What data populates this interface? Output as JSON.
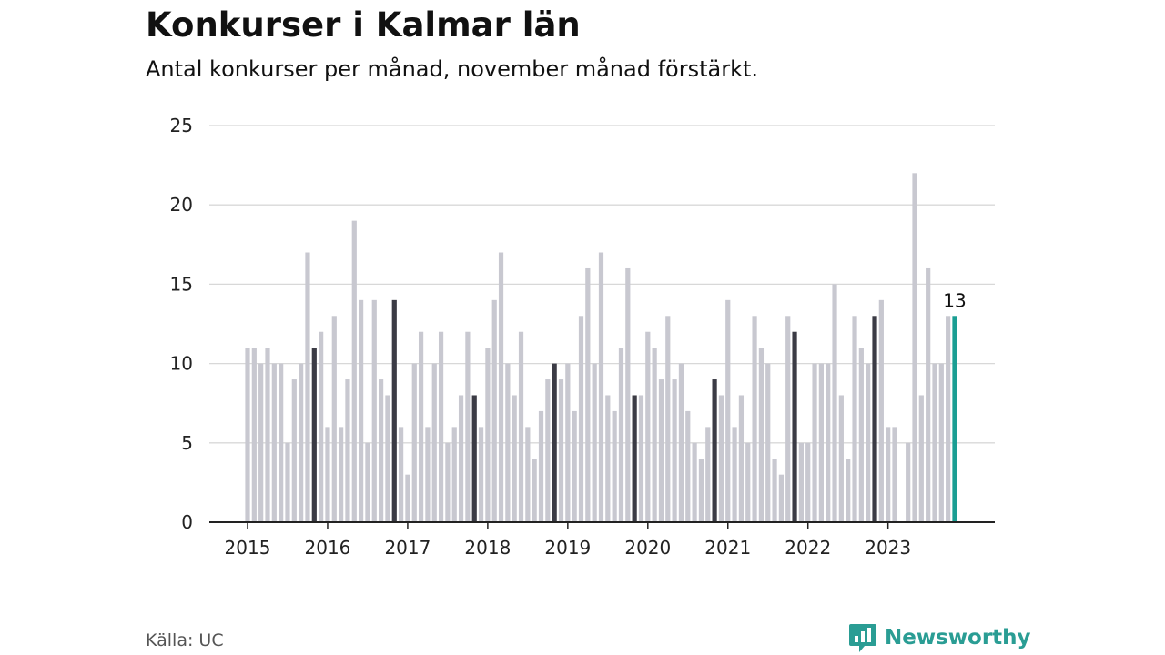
{
  "header": {
    "title": "Konkurser i Kalmar län",
    "subtitle": "Antal konkurser per månad, november månad förstärkt."
  },
  "footer": {
    "source": "Källa: UC",
    "brand": "Newsworthy",
    "brand_icon": "newsworthy-logo-icon"
  },
  "colors": {
    "bar": "#c8c8d0",
    "highlight": "#3b3b45",
    "current": "#1a9e93",
    "grid": "#d8d8d8",
    "axis": "#222222",
    "brand": "#2a9d94"
  },
  "chart_data": {
    "type": "bar",
    "x_tick_labels": [
      "2015",
      "2016",
      "2017",
      "2018",
      "2019",
      "2020",
      "2021",
      "2022",
      "2023"
    ],
    "y_ticks": [
      "0",
      "5",
      "10",
      "15",
      "20",
      "25"
    ],
    "ylim": [
      0,
      25
    ],
    "grid": true,
    "start": "2015-01",
    "highlight": "november",
    "values": [
      11,
      11,
      10,
      11,
      10,
      10,
      5,
      9,
      10,
      17,
      11,
      12,
      6,
      13,
      6,
      9,
      19,
      14,
      5,
      14,
      9,
      8,
      14,
      6,
      3,
      10,
      12,
      6,
      10,
      12,
      5,
      6,
      8,
      12,
      8,
      6,
      11,
      14,
      17,
      10,
      8,
      12,
      6,
      4,
      7,
      9,
      10,
      9,
      10,
      7,
      13,
      16,
      10,
      17,
      8,
      7,
      11,
      16,
      8,
      8,
      12,
      11,
      9,
      13,
      9,
      10,
      7,
      5,
      4,
      6,
      9,
      8,
      14,
      6,
      8,
      5,
      13,
      11,
      10,
      4,
      3,
      13,
      12,
      5,
      5,
      10,
      10,
      10,
      15,
      8,
      4,
      13,
      11,
      10,
      13,
      14,
      6,
      6,
      0,
      5,
      22,
      8,
      16,
      10,
      10,
      13,
      13
    ],
    "last_value_label": "13"
  }
}
